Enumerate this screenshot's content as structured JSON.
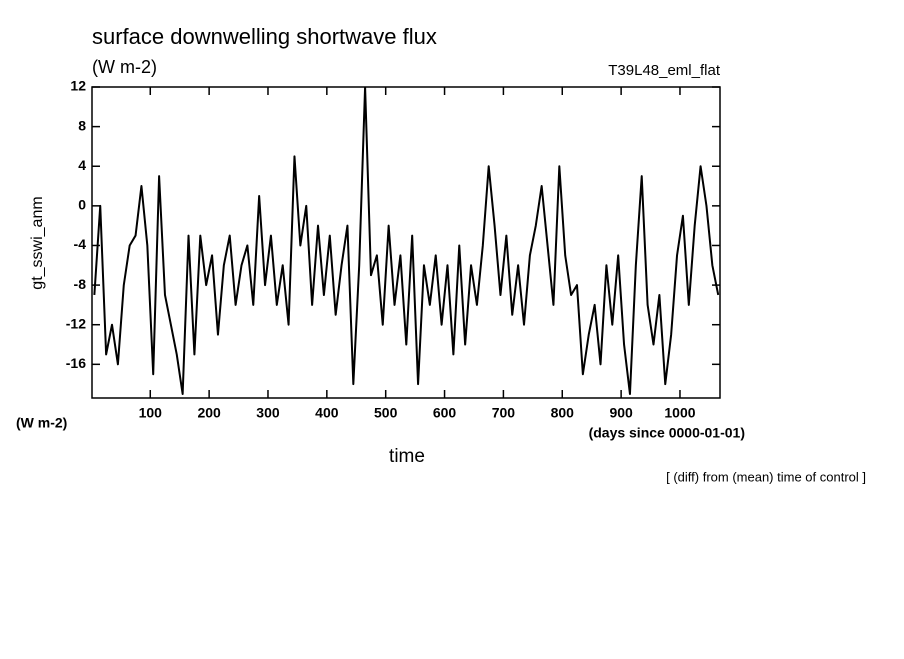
{
  "chart_data": {
    "type": "line",
    "title": "surface downwelling shortwave flux",
    "subtitle": "(W m-2)",
    "run_label": "T39L48_eml_flat",
    "y_label": "gt_sswi_anm",
    "y_unit": "(W m-2)",
    "x_label": "time",
    "x_unit": "(days since 0000-01-01)",
    "note": "[ (diff) from (mean) time of control ]",
    "color": "#000000",
    "xlim": [
      1,
      1068
    ],
    "ylim": [
      -19.4,
      12
    ],
    "xticks": [
      100,
      200,
      300,
      400,
      500,
      600,
      700,
      800,
      900,
      1000
    ],
    "yticks": [
      -16,
      -12,
      -8,
      -4,
      0,
      4,
      8,
      12
    ],
    "x": [
      5,
      15,
      25,
      35,
      45,
      55,
      65,
      75,
      85,
      95,
      105,
      115,
      125,
      135,
      145,
      155,
      165,
      175,
      185,
      195,
      205,
      215,
      225,
      235,
      245,
      255,
      265,
      275,
      285,
      295,
      305,
      315,
      325,
      335,
      345,
      355,
      365,
      375,
      385,
      395,
      405,
      415,
      425,
      435,
      445,
      455,
      465,
      475,
      485,
      495,
      505,
      515,
      525,
      535,
      545,
      555,
      565,
      575,
      585,
      595,
      605,
      615,
      625,
      635,
      645,
      655,
      665,
      675,
      685,
      695,
      705,
      715,
      725,
      735,
      745,
      755,
      765,
      775,
      785,
      795,
      805,
      815,
      825,
      835,
      845,
      855,
      865,
      875,
      885,
      895,
      905,
      915,
      925,
      935,
      945,
      955,
      965,
      975,
      985,
      995,
      1005,
      1015,
      1025,
      1035,
      1045,
      1055,
      1065
    ],
    "values": [
      -9,
      0,
      -15,
      -12,
      -16,
      -8,
      -4,
      -3,
      2,
      -4,
      -17,
      3,
      -9,
      -12,
      -15,
      -19,
      -3,
      -15,
      -3,
      -8,
      -5,
      -13,
      -6,
      -3,
      -10,
      -6,
      -4,
      -10,
      1,
      -8,
      -3,
      -10,
      -6,
      -12,
      5,
      -4,
      0,
      -10,
      -2,
      -9,
      -3,
      -11,
      -6,
      -2,
      -18,
      -6,
      12,
      -7,
      -5,
      -12,
      -2,
      -10,
      -5,
      -14,
      -3,
      -18,
      -6,
      -10,
      -5,
      -12,
      -6,
      -15,
      -4,
      -14,
      -6,
      -10,
      -4,
      4,
      -2,
      -9,
      -3,
      -11,
      -6,
      -12,
      -5,
      -2,
      2,
      -4,
      -10,
      4,
      -5,
      -9,
      -8,
      -17,
      -13,
      -10,
      -16,
      -6,
      -12,
      -5,
      -14,
      -19,
      -6,
      3,
      -10,
      -14,
      -9,
      -18,
      -13,
      -5,
      -1,
      -10,
      -2,
      4,
      0,
      -6,
      -9
    ]
  }
}
